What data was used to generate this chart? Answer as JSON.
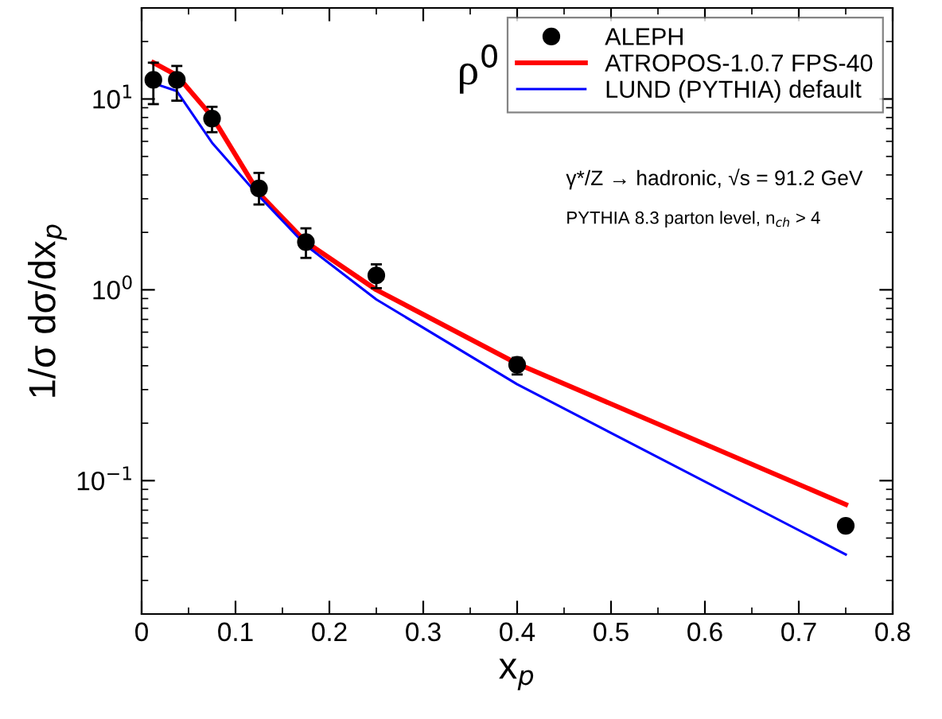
{
  "chart_data": {
    "type": "scatter",
    "xlabel": "x$_{p}$",
    "ylabel": "1/σ dσ/dx$_{p}$",
    "x": [
      0.0125,
      0.0375,
      0.075,
      0.125,
      0.175,
      0.25,
      0.4,
      0.75
    ],
    "series": [
      {
        "name": "ALEPH",
        "color": "#000000",
        "marker": "circle",
        "values": [
          12.6,
          12.6,
          7.9,
          3.4,
          1.78,
          1.19,
          0.405,
          0.058
        ],
        "errors": [
          [
            9.4,
            15.5
          ],
          [
            9.8,
            14.9
          ],
          [
            6.7,
            9.1
          ],
          [
            2.8,
            4.1
          ],
          [
            1.47,
            2.1
          ],
          [
            1.02,
            1.36
          ],
          [
            0.36,
            0.44
          ],
          [
            0.054,
            0.062
          ]
        ]
      },
      {
        "name": "ATROPOS-1.0.7 FPS-40",
        "type": "line",
        "color": "#ff0000",
        "marker": "none",
        "values": [
          15.5,
          13.3,
          8.1,
          3.2,
          1.78,
          1.0,
          0.41,
          0.075
        ]
      },
      {
        "name": "LUND (PYTHIA) default",
        "type": "line",
        "color": "#0000ff",
        "marker": "none",
        "values": [
          12.1,
          11.0,
          5.9,
          3.1,
          1.71,
          0.89,
          0.32,
          0.041
        ]
      }
    ],
    "log": "y",
    "xlim": [
      0,
      0.8
    ],
    "xticks": [
      0,
      0.1,
      0.2,
      0.3,
      0.4,
      0.5,
      0.6,
      0.7,
      0.8
    ],
    "ylim": [
      0.02,
      30
    ],
    "yticks": [
      {
        "value": 0.1,
        "label": "10$^{−1}$"
      },
      {
        "value": 1,
        "label": "10$^{0}$"
      },
      {
        "value": 10,
        "label": "10$^{1}$"
      }
    ],
    "grid": false,
    "legend": "top right",
    "annotations": [
      {
        "text": "ρ$^{0}$"
      },
      {
        "text": "γ*/Z → hadronic, √s = 91.2 GeV"
      },
      {
        "text": "PYTHIA 8.3 parton level, n$_{ch}$ > 4"
      }
    ]
  }
}
